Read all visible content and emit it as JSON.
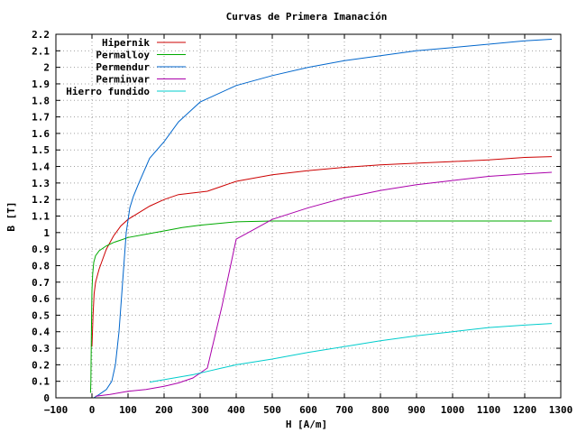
{
  "chart_data": {
    "type": "line",
    "title": "Curvas de Primera Imanación",
    "xlabel": "H [A/m]",
    "ylabel": "B [T]",
    "xlim": [
      -100,
      1300
    ],
    "ylim": [
      0,
      2.2
    ],
    "xticks": [
      "−100",
      "0",
      "100",
      "200",
      "300",
      "400",
      "500",
      "600",
      "700",
      "800",
      "900",
      "1000",
      "1100",
      "1200",
      "1300"
    ],
    "yticks": [
      "0",
      "0.1",
      "0.2",
      "0.3",
      "0.4",
      "0.5",
      "0.6",
      "0.7",
      "0.8",
      "0.9",
      "1",
      "1.1",
      "1.2",
      "1.3",
      "1.4",
      "1.5",
      "1.6",
      "1.7",
      "1.8",
      "1.9",
      "2",
      "2.1",
      "2.2"
    ],
    "xtick_values": [
      -100,
      0,
      100,
      200,
      300,
      400,
      500,
      600,
      700,
      800,
      900,
      1000,
      1100,
      1200,
      1300
    ],
    "ytick_values": [
      0,
      0.1,
      0.2,
      0.3,
      0.4,
      0.5,
      0.6,
      0.7,
      0.8,
      0.9,
      1.0,
      1.1,
      1.2,
      1.3,
      1.4,
      1.5,
      1.6,
      1.7,
      1.8,
      1.9,
      2.0,
      2.1,
      2.2
    ],
    "grid": true,
    "legend_position": "top-left",
    "series": [
      {
        "name": "Hipernik",
        "color": "#cc0000",
        "x": [
          0,
          3,
          6,
          10,
          20,
          40,
          60,
          80,
          100,
          130,
          160,
          200,
          240,
          280,
          320,
          360,
          400,
          450,
          500,
          600,
          700,
          800,
          900,
          1000,
          1100,
          1200,
          1275
        ],
        "y": [
          0.31,
          0.5,
          0.63,
          0.7,
          0.78,
          0.9,
          0.98,
          1.04,
          1.08,
          1.12,
          1.16,
          1.2,
          1.23,
          1.24,
          1.25,
          1.28,
          1.31,
          1.33,
          1.35,
          1.375,
          1.395,
          1.41,
          1.42,
          1.43,
          1.44,
          1.455,
          1.46
        ]
      },
      {
        "name": "Permalloy",
        "color": "#00aa00",
        "x": [
          -4,
          -3,
          -2,
          -1,
          0,
          2,
          5,
          10,
          20,
          40,
          60,
          80,
          100,
          150,
          200,
          250,
          300,
          350,
          400,
          500,
          700,
          1000,
          1275
        ],
        "y": [
          0.03,
          0.1,
          0.3,
          0.5,
          0.65,
          0.75,
          0.82,
          0.86,
          0.89,
          0.92,
          0.94,
          0.955,
          0.97,
          0.99,
          1.01,
          1.03,
          1.045,
          1.055,
          1.065,
          1.07,
          1.07,
          1.07,
          1.07
        ]
      },
      {
        "name": "Permendur",
        "color": "#0066cc",
        "x": [
          5,
          20,
          40,
          55,
          65,
          75,
          85,
          95,
          105,
          115,
          130,
          160,
          200,
          240,
          300,
          400,
          500,
          600,
          700,
          800,
          900,
          1000,
          1100,
          1200,
          1275
        ],
        "y": [
          0.0,
          0.02,
          0.05,
          0.1,
          0.2,
          0.4,
          0.7,
          1.0,
          1.15,
          1.22,
          1.3,
          1.45,
          1.55,
          1.67,
          1.79,
          1.89,
          1.95,
          2.0,
          2.04,
          2.07,
          2.1,
          2.12,
          2.14,
          2.16,
          2.17
        ]
      },
      {
        "name": "Perminvar",
        "color": "#aa00aa",
        "x": [
          10,
          50,
          100,
          150,
          200,
          240,
          280,
          320,
          360,
          400,
          450,
          500,
          600,
          700,
          800,
          900,
          1000,
          1100,
          1200,
          1275
        ],
        "y": [
          0.01,
          0.02,
          0.04,
          0.05,
          0.07,
          0.09,
          0.12,
          0.18,
          0.55,
          0.96,
          1.02,
          1.08,
          1.15,
          1.21,
          1.255,
          1.29,
          1.315,
          1.34,
          1.355,
          1.365
        ]
      },
      {
        "name": "Hierro fundido",
        "color": "#00cccc",
        "x": [
          160,
          200,
          240,
          280,
          320,
          360,
          400,
          500,
          600,
          700,
          800,
          900,
          1000,
          1100,
          1200,
          1275
        ],
        "y": [
          0.095,
          0.11,
          0.125,
          0.14,
          0.16,
          0.18,
          0.2,
          0.235,
          0.275,
          0.31,
          0.345,
          0.375,
          0.4,
          0.425,
          0.44,
          0.45
        ]
      }
    ]
  }
}
